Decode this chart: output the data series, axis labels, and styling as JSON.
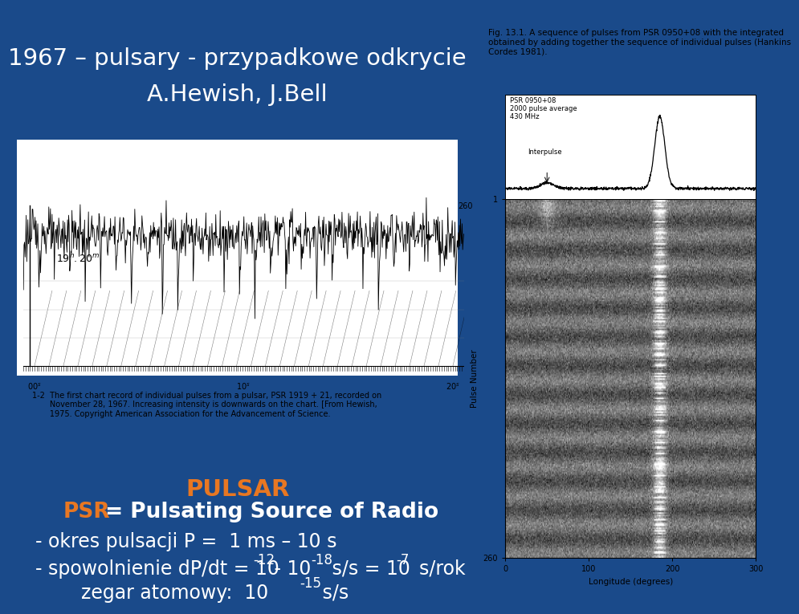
{
  "bg_color": "#1a4a8a",
  "title_line1": "1967 – pulsary - przypadkowe odkrycie",
  "title_line2": "A.Hewish, J.Bell",
  "title_color": "#ffffff",
  "title_fontsize": 21,
  "pulsar_label": "PULSAR",
  "pulsar_color": "#e87722",
  "psr_label": "PSR",
  "psr_rest": " = Pulsating Source of Radio",
  "psr_color": "#e87722",
  "psr_fontsize": 19,
  "line1": "- okres pulsacji P =  1 ms – 10 s",
  "text_color": "#ffffff",
  "text_fontsize": 17,
  "fig_caption": "Fig. 13.1. A sequence of pulses from PSR 0950+08 with the integrated \nobtained by adding together the sequence of individual pulses (Hankins\nCordes 1981).",
  "caption_fontsize": 7.5,
  "left_chart_caption1": "1-2  The first chart record of individual pulses from a pulsar, PSR 1919 + 21, recorded on",
  "left_chart_caption2": "       November 28, 1967. Increasing intensity is downwards on the chart. [From Hewish,",
  "left_chart_caption3": "       1975. Copyright American Association for the Advancement of Science."
}
